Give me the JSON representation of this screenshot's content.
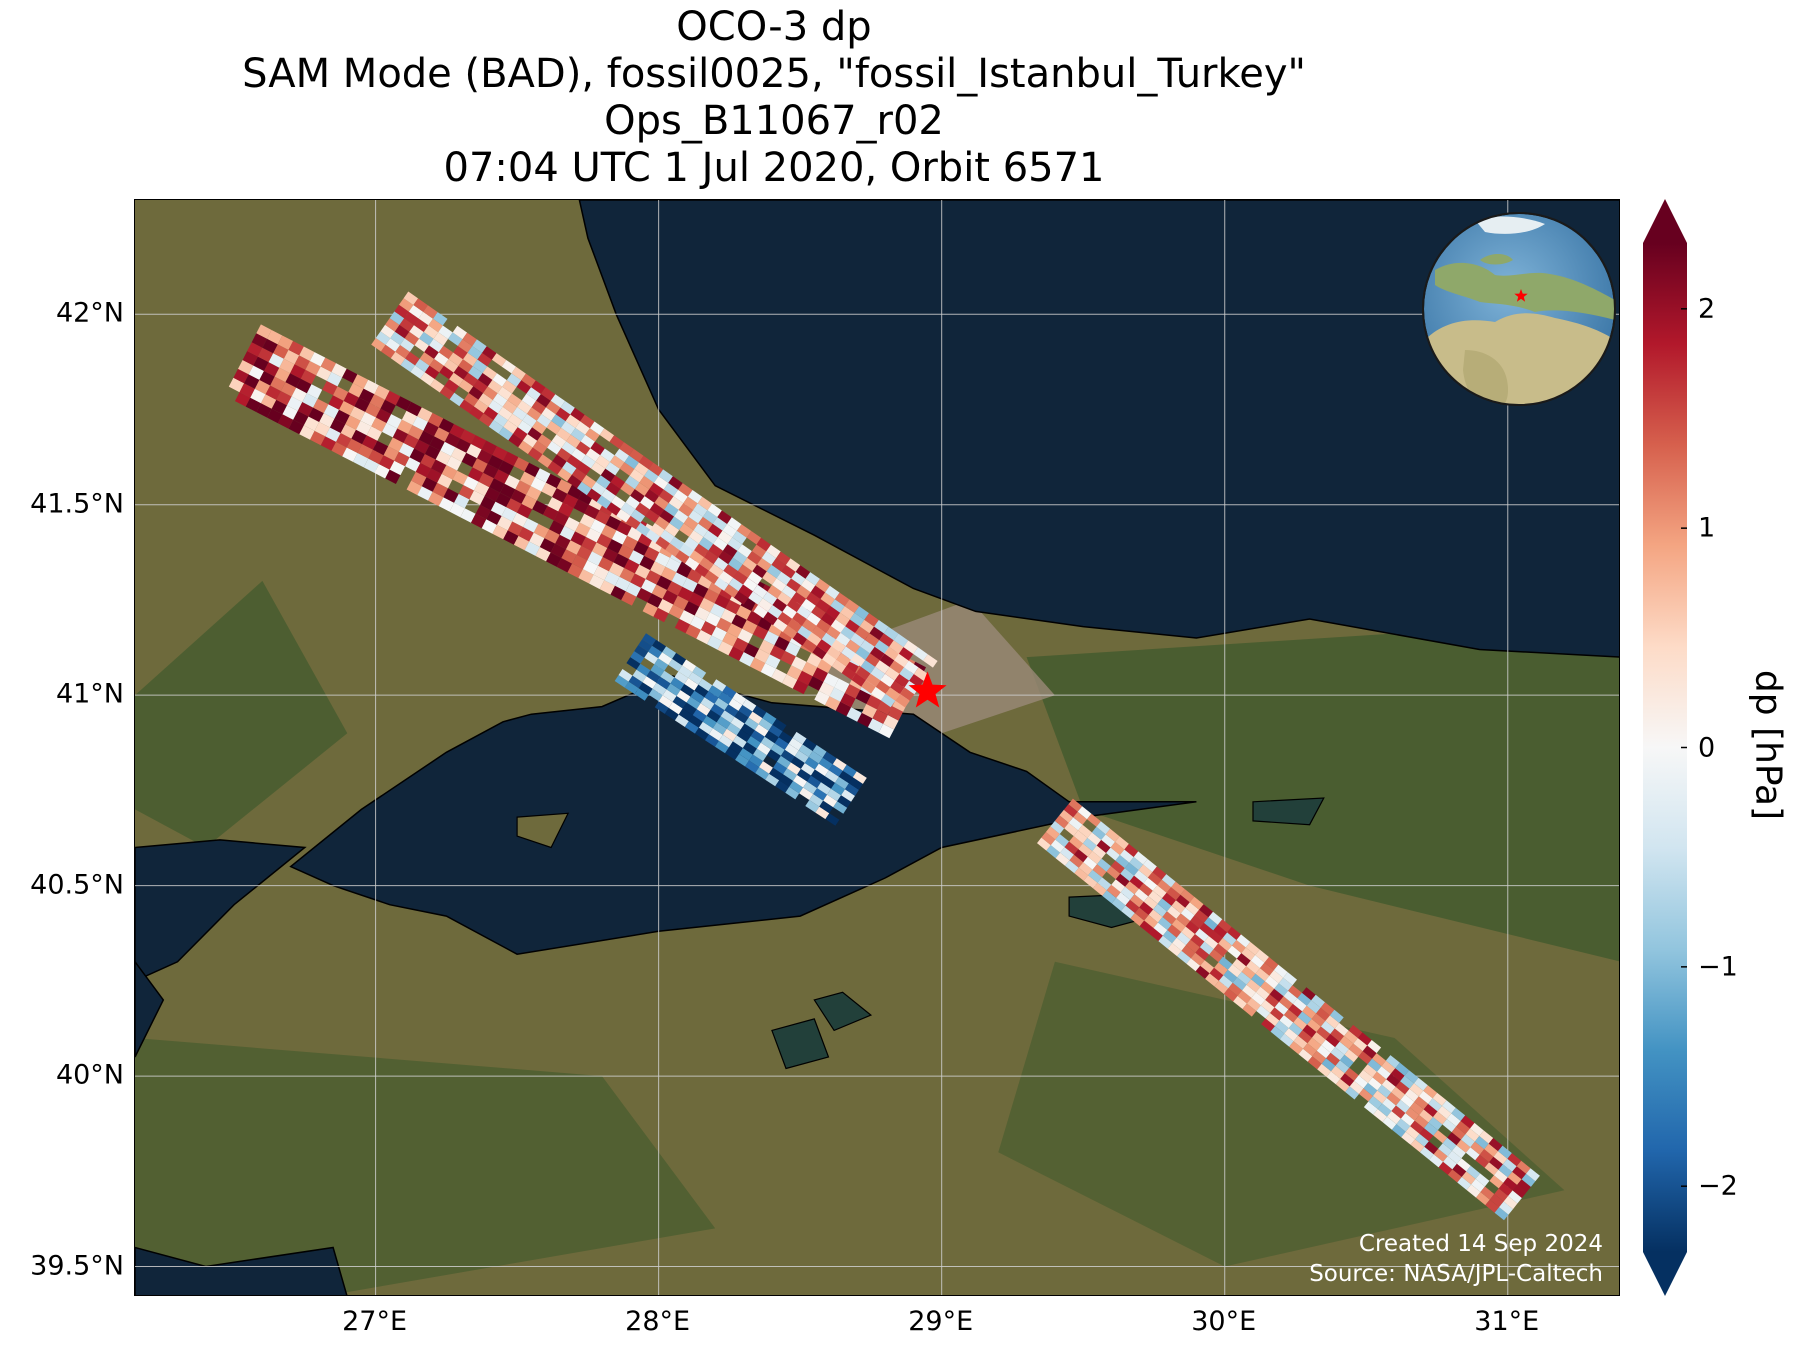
{
  "title": {
    "line1": "OCO-3 dp",
    "line2": "SAM Mode (BAD), fossil0025, \"fossil_Istanbul_Turkey\"",
    "line3": "Ops_B11067_r02",
    "line4": "07:04 UTC 1 Jul 2020, Orbit 6571"
  },
  "map": {
    "lon_range": [
      26.15,
      31.4
    ],
    "lat_range": [
      39.42,
      42.3
    ],
    "x_ticks": [
      {
        "value": 27,
        "label": "27°E"
      },
      {
        "value": 28,
        "label": "28°E"
      },
      {
        "value": 29,
        "label": "29°E"
      },
      {
        "value": 30,
        "label": "30°E"
      },
      {
        "value": 31,
        "label": "31°E"
      }
    ],
    "y_ticks": [
      {
        "value": 42,
        "label": "42°N"
      },
      {
        "value": 41.5,
        "label": "41.5°N"
      },
      {
        "value": 41,
        "label": "41°N"
      },
      {
        "value": 40.5,
        "label": "40.5°N"
      },
      {
        "value": 40,
        "label": "40°N"
      },
      {
        "value": 39.5,
        "label": "39.5°N"
      }
    ],
    "target": {
      "lon": 28.95,
      "lat": 41.01,
      "marker": "star",
      "color": "#ff0000"
    },
    "colors": {
      "sea": "#10253a",
      "land": "#6e6a3c",
      "forest": "#3f5a2c",
      "urban": "#9a8a78",
      "coast": "#000000",
      "grid": "#cfcfcf"
    }
  },
  "colorbar": {
    "label": "dp [hPa]",
    "range": [
      -2.3,
      2.3
    ],
    "extend": "both",
    "colormap": "RdBu_r",
    "ticks": [
      {
        "value": 2,
        "label": "2"
      },
      {
        "value": 1,
        "label": "1"
      },
      {
        "value": 0,
        "label": "0"
      },
      {
        "value": -1,
        "label": "−1"
      },
      {
        "value": -2,
        "label": "−2"
      }
    ],
    "stops": [
      "#053061",
      "#2166ac",
      "#4393c3",
      "#92c5de",
      "#d1e5f0",
      "#f7f7f7",
      "#fddbc7",
      "#f4a582",
      "#d6604d",
      "#b2182b",
      "#67001f"
    ]
  },
  "chart_data": {
    "type": "heatmap",
    "title": "OCO-3 dp",
    "xlabel": "",
    "ylabel": "",
    "xlim": [
      26.15,
      31.4
    ],
    "ylim": [
      39.42,
      42.3
    ],
    "value_label": "dp [hPa]",
    "value_range": [
      -2.3,
      2.3
    ],
    "swaths": [
      {
        "start": [
          26.53,
          41.88
        ],
        "end": [
          28.88,
          40.98
        ],
        "width_deg": 0.21,
        "mean_dp": 1.2
      },
      {
        "start": [
          27.05,
          41.99
        ],
        "end": [
          28.92,
          41.02
        ],
        "width_deg": 0.17,
        "mean_dp": 0.6
      },
      {
        "start": [
          27.9,
          41.1
        ],
        "end": [
          28.68,
          40.72
        ],
        "width_deg": 0.15,
        "mean_dp": -1.3
      },
      {
        "start": [
          29.4,
          40.67
        ],
        "end": [
          31.05,
          39.68
        ],
        "width_deg": 0.15,
        "mean_dp": 0.5
      }
    ]
  },
  "credits": {
    "created": "Created 14 Sep 2024",
    "source": "Source: NASA/JPL-Caltech"
  }
}
